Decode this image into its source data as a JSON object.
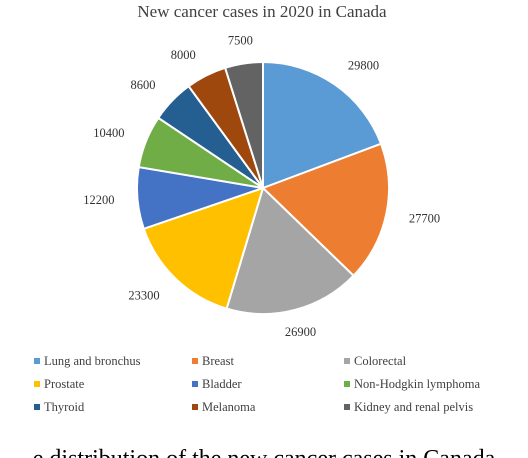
{
  "chart_data": {
    "type": "pie",
    "title": "New cancer cases in 2020 in Canada",
    "categories": [
      "Lung and bronchus",
      "Breast",
      "Colorectal",
      "Prostate",
      "Bladder",
      "Non-Hodgkin lymphoma",
      "Thyroid",
      "Melanoma",
      "Kidney and renal pelvis"
    ],
    "values": [
      29800,
      27700,
      26900,
      23300,
      12200,
      10400,
      8600,
      8000,
      7500
    ],
    "colors": [
      "#5B9BD5",
      "#ED7D31",
      "#A5A5A5",
      "#FFC000",
      "#4472C4",
      "#70AD47",
      "#255E91",
      "#9E480E",
      "#636363"
    ],
    "legend_position": "bottom",
    "start_angle": "12 o'clock, clockwise"
  },
  "caption": "e distribution of the new cancer cases in Canada"
}
